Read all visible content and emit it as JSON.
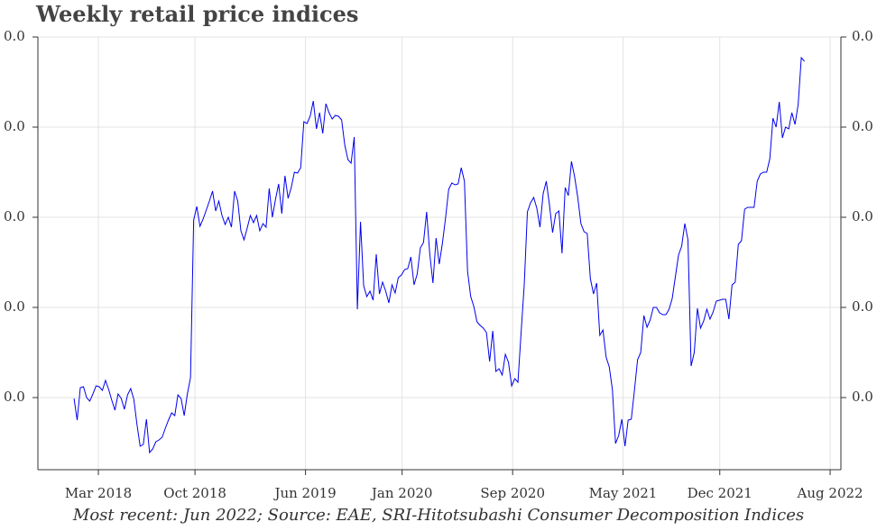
{
  "chart_data": {
    "type": "line",
    "title": "Weekly retail price indices",
    "caption": "Most recent: Jun 2022; Source: EAE, SRI-Hitotsubashi Consumer Decomposition Indices",
    "grid": true,
    "xlim": [
      2017.802,
      2022.648
    ],
    "xticks": [
      {
        "value": 2018.167,
        "label": "Mar 2018"
      },
      {
        "value": 2018.75,
        "label": "Oct 2018"
      },
      {
        "value": 2019.417,
        "label": "Jun 2019"
      },
      {
        "value": 2020.0,
        "label": "Jan 2020"
      },
      {
        "value": 2020.667,
        "label": "Sep 2020"
      },
      {
        "value": 2021.333,
        "label": "May 2021"
      },
      {
        "value": 2021.917,
        "label": "Dec 2021"
      },
      {
        "value": 2022.583,
        "label": "Aug 2022"
      }
    ],
    "ylim": [
      -0.008,
      0.04
    ],
    "yticks": [
      {
        "value": 0,
        "label": "0.0"
      },
      {
        "value": 0.01,
        "label": "0.0"
      },
      {
        "value": 0.02,
        "label": "0.0"
      },
      {
        "value": 0.03,
        "label": "0.0"
      },
      {
        "value": 0.04,
        "label": "0.0"
      }
    ],
    "x": [
      2018.02,
      2018.039,
      2018.058,
      2018.077,
      2018.096,
      2018.115,
      2018.134,
      2018.153,
      2018.172,
      2018.191,
      2018.21,
      2018.229,
      2018.248,
      2018.267,
      2018.286,
      2018.305,
      2018.324,
      2018.343,
      2018.362,
      2018.381,
      2018.4,
      2018.419,
      2018.438,
      2018.457,
      2018.476,
      2018.495,
      2018.514,
      2018.533,
      2018.552,
      2018.571,
      2018.59,
      2018.609,
      2018.628,
      2018.647,
      2018.666,
      2018.685,
      2018.704,
      2018.723,
      2018.742,
      2018.761,
      2018.78,
      2018.799,
      2018.818,
      2018.837,
      2018.856,
      2018.875,
      2018.894,
      2018.913,
      2018.932,
      2018.951,
      2018.97,
      2018.989,
      2019.008,
      2019.027,
      2019.046,
      2019.065,
      2019.084,
      2019.103,
      2019.122,
      2019.141,
      2019.16,
      2019.179,
      2019.198,
      2019.217,
      2019.236,
      2019.255,
      2019.274,
      2019.293,
      2019.312,
      2019.331,
      2019.35,
      2019.369,
      2019.388,
      2019.407,
      2019.426,
      2019.445,
      2019.464,
      2019.483,
      2019.502,
      2019.521,
      2019.54,
      2019.559,
      2019.578,
      2019.597,
      2019.616,
      2019.635,
      2019.654,
      2019.673,
      2019.692,
      2019.711,
      2019.73,
      2019.749,
      2019.768,
      2019.787,
      2019.806,
      2019.825,
      2019.844,
      2019.863,
      2019.882,
      2019.901,
      2019.92,
      2019.939,
      2019.958,
      2019.977,
      2019.996,
      2020.015,
      2020.034,
      2020.053,
      2020.072,
      2020.091,
      2020.11,
      2020.129,
      2020.148,
      2020.167,
      2020.186,
      2020.205,
      2020.224,
      2020.243,
      2020.262,
      2020.281,
      2020.3,
      2020.319,
      2020.338,
      2020.357,
      2020.376,
      2020.395,
      2020.414,
      2020.433,
      2020.452,
      2020.471,
      2020.49,
      2020.509,
      2020.528,
      2020.547,
      2020.566,
      2020.585,
      2020.604,
      2020.623,
      2020.642,
      2020.661,
      2020.68,
      2020.699,
      2020.718,
      2020.737,
      2020.756,
      2020.775,
      2020.794,
      2020.813,
      2020.832,
      2020.851,
      2020.87,
      2020.889,
      2020.908,
      2020.927,
      2020.946,
      2020.965,
      2020.984,
      2021.003,
      2021.022,
      2021.041,
      2021.06,
      2021.079,
      2021.098,
      2021.117,
      2021.136,
      2021.155,
      2021.174,
      2021.193,
      2021.212,
      2021.231,
      2021.25,
      2021.269,
      2021.288,
      2021.307,
      2021.326,
      2021.345,
      2021.364,
      2021.383,
      2021.402,
      2021.421,
      2021.44,
      2021.459,
      2021.478,
      2021.497,
      2021.516,
      2021.535,
      2021.554,
      2021.573,
      2021.592,
      2021.611,
      2021.63,
      2021.649,
      2021.668,
      2021.687,
      2021.706,
      2021.725,
      2021.744,
      2021.763,
      2021.782,
      2021.801,
      2021.82,
      2021.839,
      2021.858,
      2021.877,
      2021.896,
      2021.915,
      2021.934,
      2021.953,
      2021.972,
      2021.991,
      2022.01,
      2022.029,
      2022.048,
      2022.067,
      2022.086,
      2022.105,
      2022.124,
      2022.143,
      2022.162,
      2022.181,
      2022.2,
      2022.219,
      2022.238,
      2022.257,
      2022.276,
      2022.295,
      2022.314,
      2022.333,
      2022.352,
      2022.371,
      2022.39,
      2022.409,
      2022.428
    ],
    "series": [
      {
        "color": "#0000ee",
        "values": [
          -0.0001,
          -0.0025,
          0.0011,
          0.0012,
          0,
          -0.0004,
          0.0004,
          0.0013,
          0.0012,
          0.0008,
          0.0019,
          0.0009,
          -0.0003,
          -0.0014,
          0.0004,
          -0.0001,
          -0.0013,
          0.0003,
          0.001,
          -0.0002,
          -0.003,
          -0.0054,
          -0.0052,
          -0.0024,
          -0.0061,
          -0.0057,
          -0.0049,
          -0.0047,
          -0.0044,
          -0.0034,
          -0.0025,
          -0.0017,
          -0.002,
          0.0003,
          -0.0001,
          -0.002,
          0.0004,
          0.0022,
          0.0197,
          0.0212,
          0.019,
          0.0198,
          0.0208,
          0.0218,
          0.0229,
          0.0207,
          0.0218,
          0.0202,
          0.0192,
          0.02,
          0.0189,
          0.0229,
          0.0218,
          0.0185,
          0.0175,
          0.0188,
          0.0202,
          0.0194,
          0.0202,
          0.0185,
          0.0193,
          0.0189,
          0.0232,
          0.02,
          0.022,
          0.0237,
          0.0204,
          0.0246,
          0.0221,
          0.0233,
          0.025,
          0.0249,
          0.0255,
          0.0306,
          0.0304,
          0.0312,
          0.0329,
          0.0298,
          0.0316,
          0.0293,
          0.0326,
          0.0316,
          0.0309,
          0.0313,
          0.0312,
          0.0308,
          0.028,
          0.0264,
          0.026,
          0.0289,
          0.0098,
          0.0195,
          0.0124,
          0.0112,
          0.0118,
          0.0108,
          0.0159,
          0.0115,
          0.0128,
          0.0118,
          0.0105,
          0.0125,
          0.0116,
          0.0133,
          0.0136,
          0.0142,
          0.0143,
          0.0156,
          0.0125,
          0.0137,
          0.0166,
          0.0172,
          0.0206,
          0.0159,
          0.0127,
          0.0177,
          0.0148,
          0.0171,
          0.0199,
          0.0231,
          0.0238,
          0.0236,
          0.0237,
          0.0255,
          0.024,
          0.014,
          0.0112,
          0.0101,
          0.0084,
          0.008,
          0.0077,
          0.0072,
          0.004,
          0.0074,
          0.0029,
          0.0032,
          0.0025,
          0.0048,
          0.0039,
          0.0013,
          0.0021,
          0.0017,
          0.0072,
          0.0125,
          0.0206,
          0.0216,
          0.0222,
          0.021,
          0.0189,
          0.0226,
          0.024,
          0.0214,
          0.0183,
          0.0204,
          0.0207,
          0.016,
          0.0233,
          0.0224,
          0.0262,
          0.0245,
          0.0222,
          0.0193,
          0.0184,
          0.0182,
          0.0132,
          0.0115,
          0.0127,
          0.0069,
          0.0075,
          0.0045,
          0.0034,
          0.0009,
          -0.0051,
          -0.0042,
          -0.0024,
          -0.0054,
          -0.0025,
          -0.0024,
          0.0008,
          0.0042,
          0.005,
          0.0091,
          0.0078,
          0.0086,
          0.01,
          0.01,
          0.0094,
          0.0092,
          0.0092,
          0.0098,
          0.011,
          0.0134,
          0.0158,
          0.0168,
          0.0193,
          0.0175,
          0.0035,
          0.005,
          0.0099,
          0.0077,
          0.0085,
          0.0098,
          0.0087,
          0.0095,
          0.0107,
          0.0108,
          0.0109,
          0.0109,
          0.0087,
          0.0125,
          0.0128,
          0.017,
          0.0174,
          0.0209,
          0.0211,
          0.0211,
          0.0211,
          0.024,
          0.0248,
          0.025,
          0.025,
          0.0265,
          0.031,
          0.03,
          0.0328,
          0.0288,
          0.03,
          0.0298,
          0.0316,
          0.0303,
          0.0325,
          0.0377,
          0.0373
        ]
      }
    ]
  }
}
